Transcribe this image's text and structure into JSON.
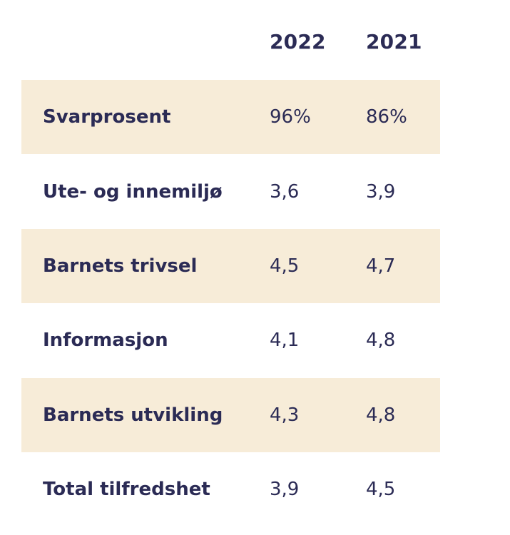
{
  "chart_data": {
    "type": "table",
    "title": "",
    "columns": [
      "2022",
      "2021"
    ],
    "colors": {
      "text": "#2b2b55",
      "shaded_row": "#f7ecd8",
      "background": "#ffffff"
    },
    "rows": [
      {
        "label": "Svarprosent",
        "values": [
          "96%",
          "86%"
        ],
        "shaded": true
      },
      {
        "label": "Ute- og innemiljø",
        "values": [
          "3,6",
          "3,9"
        ],
        "shaded": false
      },
      {
        "label": "Barnets trivsel",
        "values": [
          "4,5",
          "4,7"
        ],
        "shaded": true
      },
      {
        "label": "Informasjon",
        "values": [
          "4,1",
          "4,8"
        ],
        "shaded": false
      },
      {
        "label": "Barnets utvikling",
        "values": [
          "4,3",
          "4,8"
        ],
        "shaded": true
      },
      {
        "label": "Total tilfredshet",
        "values": [
          "3,9",
          "4,5"
        ],
        "shaded": false
      }
    ]
  }
}
